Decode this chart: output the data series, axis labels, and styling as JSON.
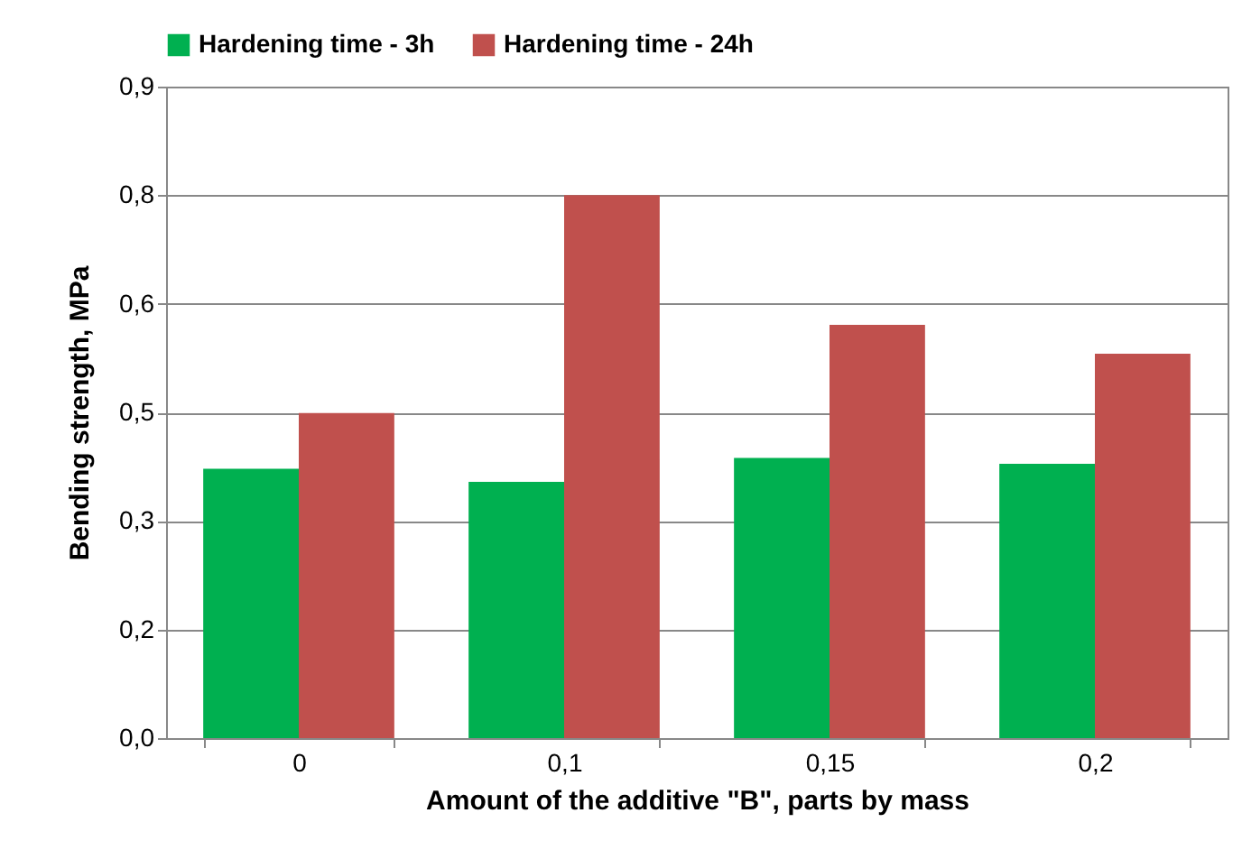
{
  "chart_data": {
    "type": "bar",
    "xlabel": "Amount of the additive \"B\", parts by mass",
    "ylabel": "Bending strength, MPa",
    "categories": [
      "0",
      "0,1",
      "0,15",
      "0,2"
    ],
    "series": [
      {
        "name": "Hardening time - 3h",
        "color": "#00b050",
        "values": [
          0.372,
          0.354,
          0.387,
          0.379
        ]
      },
      {
        "name": "Hardening time - 24h",
        "color": "#c0504d",
        "values": [
          0.449,
          0.75,
          0.571,
          0.531
        ]
      }
    ],
    "ylim": [
      0,
      0.9
    ],
    "yticks": [
      {
        "value": 0,
        "label": "0,0"
      },
      {
        "value": 0.15,
        "label": "0,2"
      },
      {
        "value": 0.3,
        "label": "0,3"
      },
      {
        "value": 0.45,
        "label": "0,5"
      },
      {
        "value": 0.6,
        "label": "0,6"
      },
      {
        "value": 0.75,
        "label": "0,8"
      },
      {
        "value": 0.9,
        "label": "0,9"
      }
    ],
    "grid": "y",
    "legend": "top"
  }
}
